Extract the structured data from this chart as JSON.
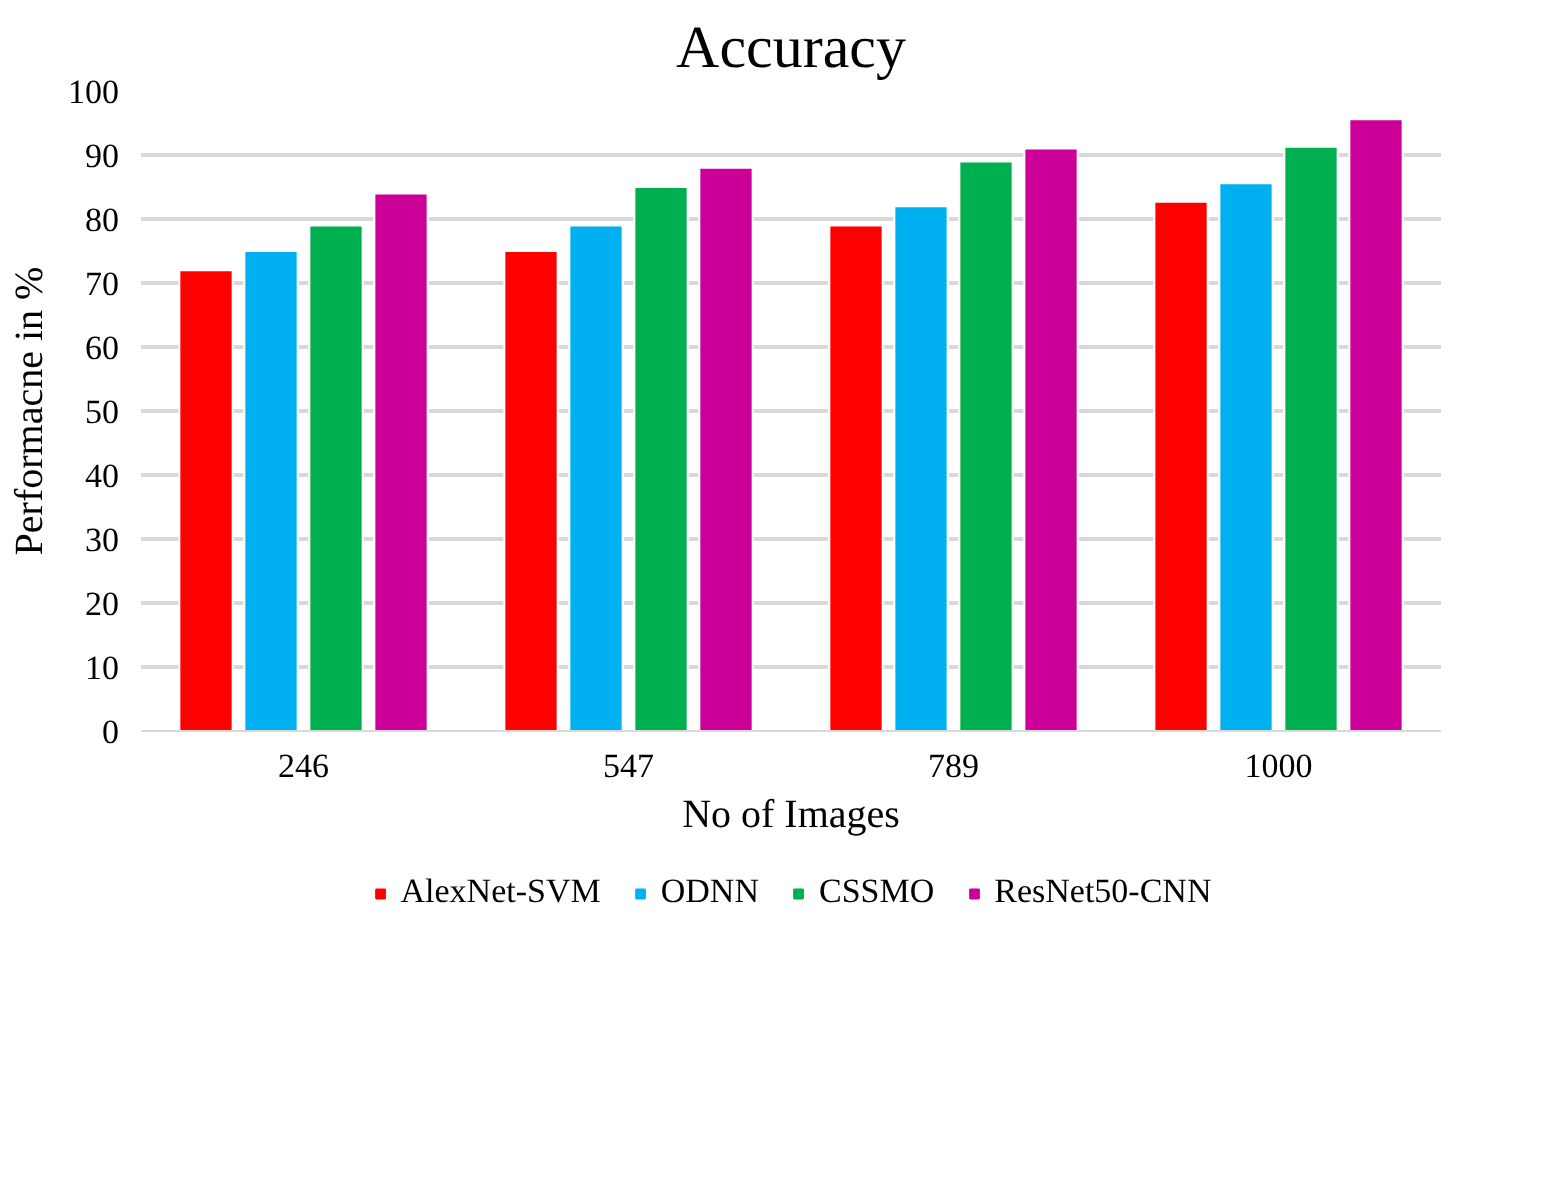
{
  "chart_data": {
    "type": "bar",
    "title": "Accuracy",
    "xlabel": "No of Images",
    "ylabel": "Performacne in %",
    "categories": [
      "246",
      "547",
      "789",
      "1000"
    ],
    "series": [
      {
        "name": "AlexNet-SVM",
        "color": "#ff0000",
        "values": [
          72,
          75,
          79,
          82.7
        ]
      },
      {
        "name": "ODNN",
        "color": "#00b0f0",
        "values": [
          75,
          79,
          82,
          85.6
        ]
      },
      {
        "name": "CSSMO",
        "color": "#00b050",
        "values": [
          79,
          85,
          89,
          91.3
        ]
      },
      {
        "name": "ResNet50-CNN",
        "color": "#cc0099",
        "values": [
          84,
          88,
          91,
          95.6
        ]
      }
    ],
    "ylim": [
      0,
      100
    ],
    "yticks": [
      0,
      10,
      20,
      30,
      40,
      50,
      60,
      70,
      80,
      90,
      100
    ],
    "grid": "y",
    "legend": "bottom"
  }
}
